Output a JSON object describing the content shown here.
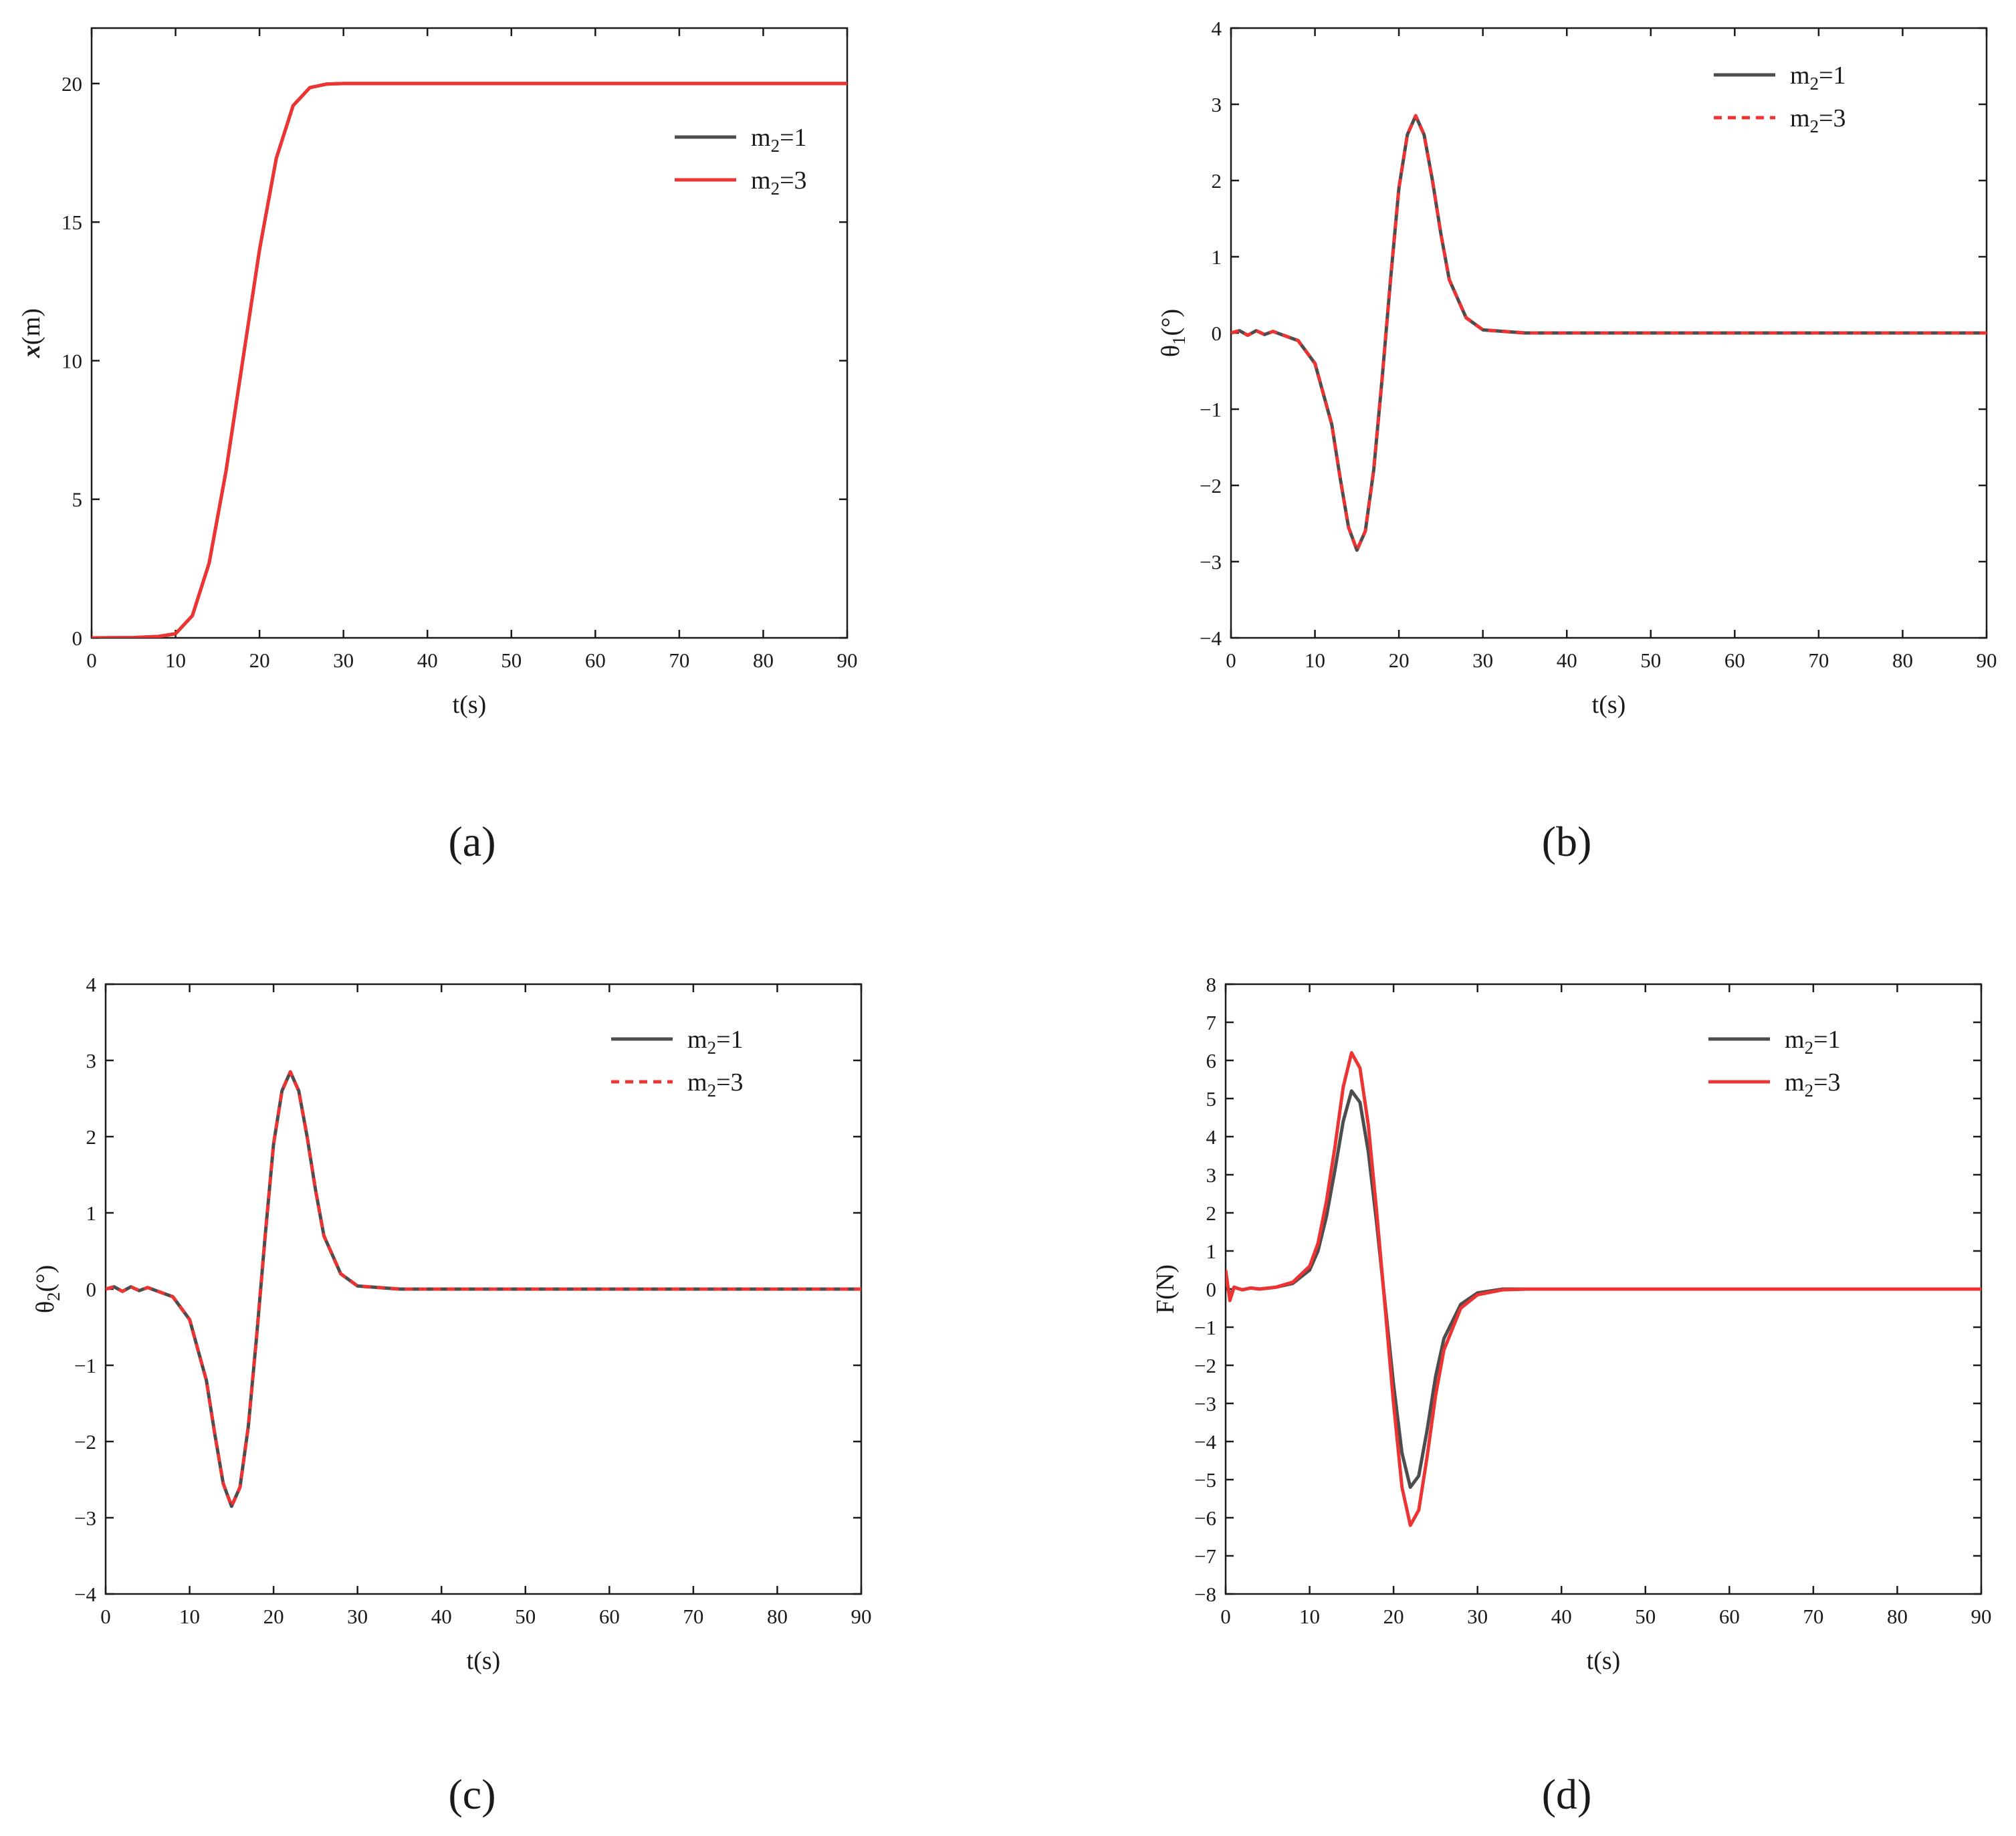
{
  "figure_labels": [
    "(a)",
    "(b)",
    "(c)",
    "(d)"
  ],
  "colors": {
    "m2_1": "#4d4d4d",
    "m2_3": "#ee3333"
  },
  "chart_data": [
    {
      "type": "line",
      "panel": "(a)",
      "xlabel": "t(s)",
      "ylabel": "x(m)",
      "xlim": [
        0,
        90
      ],
      "ylim": [
        0,
        22
      ],
      "xticks": [
        0,
        10,
        20,
        30,
        40,
        50,
        60,
        70,
        80,
        90
      ],
      "yticks": [
        0,
        5,
        10,
        15,
        20
      ],
      "legend_position": "upper-right",
      "series": [
        {
          "name": "m2=1",
          "subscript_name": [
            "m",
            "2",
            "=1"
          ],
          "color": "#4d4d4d",
          "dashed": false,
          "x": [
            0,
            5,
            8,
            10,
            12,
            14,
            16,
            18,
            20,
            22,
            24,
            26,
            28,
            30,
            40,
            50,
            60,
            70,
            80,
            90
          ],
          "y": [
            0,
            0.01,
            0.05,
            0.15,
            0.8,
            2.7,
            6.0,
            10.0,
            14.0,
            17.3,
            19.2,
            19.85,
            19.98,
            20.0,
            20.0,
            20.0,
            20.0,
            20.0,
            20.0,
            20.0
          ]
        },
        {
          "name": "m2=3",
          "subscript_name": [
            "m",
            "2",
            "=3"
          ],
          "color": "#ee3333",
          "dashed": false,
          "x": [
            0,
            5,
            8,
            10,
            12,
            14,
            16,
            18,
            20,
            22,
            24,
            26,
            28,
            30,
            40,
            50,
            60,
            70,
            80,
            90
          ],
          "y": [
            0,
            0.01,
            0.05,
            0.15,
            0.8,
            2.7,
            6.0,
            10.0,
            14.0,
            17.3,
            19.2,
            19.85,
            19.98,
            20.0,
            20.0,
            20.0,
            20.0,
            20.0,
            20.0,
            20.0
          ]
        }
      ]
    },
    {
      "type": "line",
      "panel": "(b)",
      "xlabel": "t(s)",
      "ylabel": "θ1(°)",
      "xlim": [
        0,
        90
      ],
      "ylim": [
        -4,
        4
      ],
      "xticks": [
        0,
        10,
        20,
        30,
        40,
        50,
        60,
        70,
        80,
        90
      ],
      "yticks": [
        -4,
        -3,
        -2,
        -1,
        0,
        1,
        2,
        3,
        4
      ],
      "legend_position": "upper-right",
      "series": [
        {
          "name": "m2=1",
          "subscript_name": [
            "m",
            "2",
            "=1"
          ],
          "color": "#4d4d4d",
          "dashed": false,
          "x": [
            0,
            1,
            2,
            3,
            4,
            5,
            6,
            8,
            10,
            12,
            13,
            14,
            15,
            16,
            17,
            18,
            19,
            20,
            21,
            22,
            23,
            24,
            25,
            26,
            28,
            30,
            35,
            40,
            50,
            60,
            70,
            80,
            90
          ],
          "y": [
            0,
            0.03,
            -0.03,
            0.03,
            -0.02,
            0.02,
            -0.02,
            -0.1,
            -0.4,
            -1.2,
            -1.9,
            -2.55,
            -2.85,
            -2.6,
            -1.8,
            -0.6,
            0.7,
            1.9,
            2.6,
            2.85,
            2.6,
            2.0,
            1.3,
            0.7,
            0.2,
            0.04,
            0,
            0,
            0,
            0,
            0,
            0,
            0
          ]
        },
        {
          "name": "m2=3",
          "subscript_name": [
            "m",
            "2",
            "=3"
          ],
          "color": "#ee3333",
          "dashed": true,
          "x": [
            0,
            1,
            2,
            3,
            4,
            5,
            6,
            8,
            10,
            12,
            13,
            14,
            15,
            16,
            17,
            18,
            19,
            20,
            21,
            22,
            23,
            24,
            25,
            26,
            28,
            30,
            35,
            40,
            50,
            60,
            70,
            80,
            90
          ],
          "y": [
            0,
            0.03,
            -0.03,
            0.03,
            -0.02,
            0.02,
            -0.02,
            -0.1,
            -0.4,
            -1.2,
            -1.9,
            -2.55,
            -2.85,
            -2.6,
            -1.8,
            -0.6,
            0.7,
            1.9,
            2.6,
            2.85,
            2.6,
            2.0,
            1.3,
            0.7,
            0.2,
            0.04,
            0,
            0,
            0,
            0,
            0,
            0,
            0
          ]
        }
      ]
    },
    {
      "type": "line",
      "panel": "(c)",
      "xlabel": "t(s)",
      "ylabel": "θ2(°)",
      "xlim": [
        0,
        90
      ],
      "ylim": [
        -4,
        4
      ],
      "xticks": [
        0,
        10,
        20,
        30,
        40,
        50,
        60,
        70,
        80,
        90
      ],
      "yticks": [
        -4,
        -3,
        -2,
        -1,
        0,
        1,
        2,
        3,
        4
      ],
      "legend_position": "upper-right",
      "series": [
        {
          "name": "m2=1",
          "subscript_name": [
            "m",
            "2",
            "=1"
          ],
          "color": "#4d4d4d",
          "dashed": false,
          "x": [
            0,
            1,
            2,
            3,
            4,
            5,
            6,
            8,
            10,
            12,
            13,
            14,
            15,
            16,
            17,
            18,
            19,
            20,
            21,
            22,
            23,
            24,
            25,
            26,
            28,
            30,
            35,
            40,
            50,
            60,
            70,
            80,
            90
          ],
          "y": [
            0,
            0.03,
            -0.03,
            0.03,
            -0.02,
            0.02,
            -0.02,
            -0.1,
            -0.4,
            -1.2,
            -1.9,
            -2.55,
            -2.85,
            -2.6,
            -1.8,
            -0.6,
            0.7,
            1.9,
            2.6,
            2.85,
            2.6,
            2.0,
            1.3,
            0.7,
            0.2,
            0.04,
            0,
            0,
            0,
            0,
            0,
            0,
            0
          ]
        },
        {
          "name": "m2=3",
          "subscript_name": [
            "m",
            "2",
            "=3"
          ],
          "color": "#ee3333",
          "dashed": true,
          "x": [
            0,
            1,
            2,
            3,
            4,
            5,
            6,
            8,
            10,
            12,
            13,
            14,
            15,
            16,
            17,
            18,
            19,
            20,
            21,
            22,
            23,
            24,
            25,
            26,
            28,
            30,
            35,
            40,
            50,
            60,
            70,
            80,
            90
          ],
          "y": [
            0,
            0.03,
            -0.03,
            0.03,
            -0.02,
            0.02,
            -0.02,
            -0.1,
            -0.4,
            -1.2,
            -1.9,
            -2.55,
            -2.85,
            -2.6,
            -1.8,
            -0.6,
            0.7,
            1.9,
            2.6,
            2.85,
            2.6,
            2.0,
            1.3,
            0.7,
            0.2,
            0.04,
            0,
            0,
            0,
            0,
            0,
            0,
            0
          ]
        }
      ]
    },
    {
      "type": "line",
      "panel": "(d)",
      "xlabel": "t(s)",
      "ylabel": "F(N)",
      "xlim": [
        0,
        90
      ],
      "ylim": [
        -8,
        8
      ],
      "xticks": [
        0,
        10,
        20,
        30,
        40,
        50,
        60,
        70,
        80,
        90
      ],
      "yticks": [
        -8,
        -7,
        -6,
        -5,
        -4,
        -3,
        -2,
        -1,
        0,
        1,
        2,
        3,
        4,
        5,
        6,
        7,
        8
      ],
      "legend_position": "upper-right",
      "series": [
        {
          "name": "m2=1",
          "subscript_name": [
            "m",
            "2",
            "=1"
          ],
          "color": "#4d4d4d",
          "dashed": false,
          "x": [
            0,
            0.5,
            1,
            2,
            3,
            4,
            6,
            8,
            10,
            11,
            12,
            13,
            14,
            15,
            16,
            17,
            18,
            19,
            20,
            21,
            22,
            23,
            24,
            25,
            26,
            28,
            30,
            33,
            36,
            40,
            50,
            60,
            70,
            80,
            90
          ],
          "y": [
            0.3,
            -0.2,
            0.05,
            -0.02,
            0.03,
            0,
            0.05,
            0.15,
            0.5,
            1.0,
            1.9,
            3.1,
            4.4,
            5.2,
            4.9,
            3.6,
            1.7,
            -0.4,
            -2.5,
            -4.3,
            -5.2,
            -4.9,
            -3.7,
            -2.3,
            -1.3,
            -0.4,
            -0.1,
            0,
            0,
            0,
            0,
            0,
            0,
            0,
            0
          ]
        },
        {
          "name": "m2=3",
          "subscript_name": [
            "m",
            "2",
            "=3"
          ],
          "color": "#ee3333",
          "dashed": false,
          "x": [
            0,
            0.5,
            1,
            2,
            3,
            4,
            6,
            8,
            10,
            11,
            12,
            13,
            14,
            15,
            16,
            17,
            18,
            19,
            20,
            21,
            22,
            23,
            24,
            25,
            26,
            28,
            30,
            33,
            36,
            40,
            50,
            60,
            70,
            80,
            90
          ],
          "y": [
            0.5,
            -0.3,
            0.05,
            -0.02,
            0.03,
            0,
            0.05,
            0.18,
            0.6,
            1.2,
            2.3,
            3.7,
            5.3,
            6.2,
            5.8,
            4.3,
            2.0,
            -0.5,
            -3.0,
            -5.2,
            -6.2,
            -5.8,
            -4.4,
            -2.8,
            -1.6,
            -0.5,
            -0.15,
            -0.02,
            0,
            0,
            0,
            0,
            0,
            0,
            0
          ]
        }
      ]
    }
  ]
}
